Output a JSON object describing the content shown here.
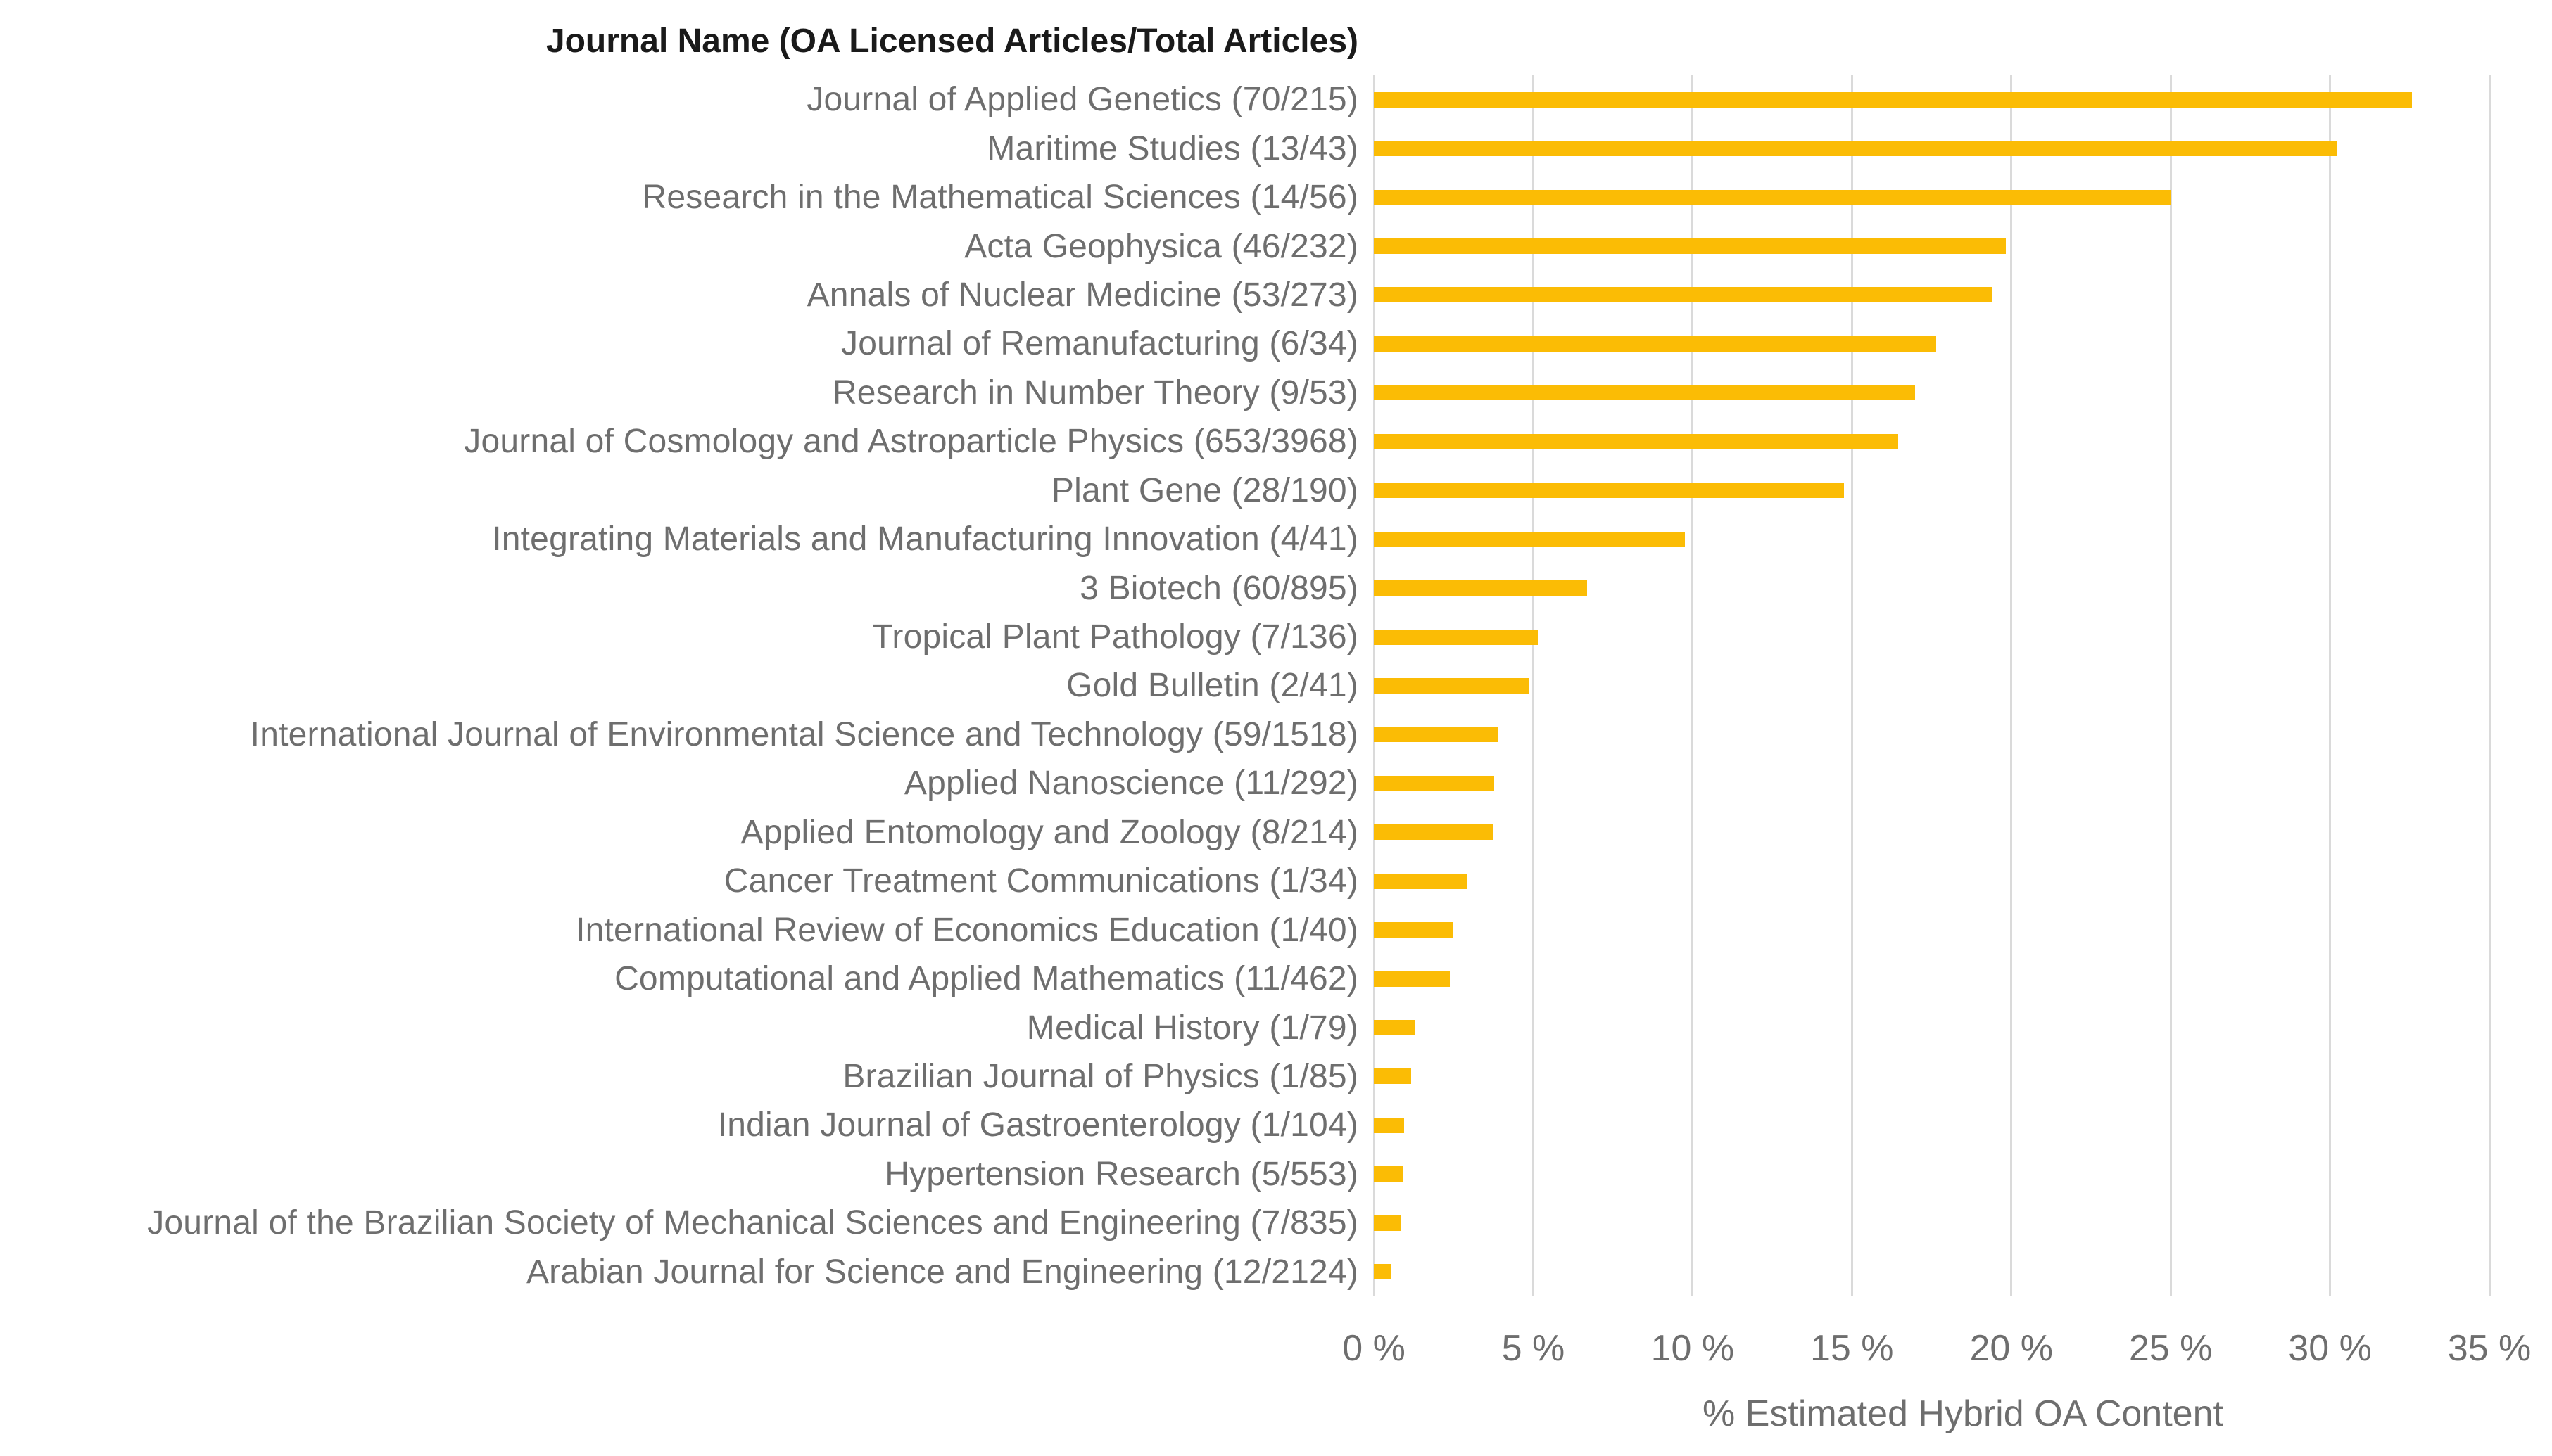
{
  "chart_data": {
    "type": "bar",
    "orientation": "horizontal",
    "title": "Journal Name (OA Licensed Articles/Total Articles)",
    "xlabel": "% Estimated Hybrid OA Content",
    "ylabel": "Journal Name (OA Licensed Articles/Total Articles)",
    "xlim": [
      0,
      35
    ],
    "x_ticks": [
      0,
      5,
      10,
      15,
      20,
      25,
      30,
      35
    ],
    "x_tick_labels": [
      "0 %",
      "5 %",
      "10 %",
      "15 %",
      "20 %",
      "25 %",
      "30 %",
      "35 %"
    ],
    "grid": true,
    "legend": false,
    "bar_color": "#FBBC05",
    "series_name": "% Estimated Hybrid OA Content",
    "categories": [
      "Journal of Applied Genetics (70/215)",
      "Maritime Studies (13/43)",
      "Research in the Mathematical Sciences (14/56)",
      "Acta Geophysica (46/232)",
      "Annals of Nuclear Medicine (53/273)",
      "Journal of Remanufacturing (6/34)",
      "Research in Number Theory (9/53)",
      "Journal of Cosmology and Astroparticle Physics (653/3968)",
      "Plant Gene (28/190)",
      "Integrating Materials and Manufacturing Innovation (4/41)",
      "3 Biotech (60/895)",
      "Tropical Plant Pathology (7/136)",
      "Gold Bulletin (2/41)",
      "International Journal of Environmental Science and Technology (59/1518)",
      "Applied Nanoscience (11/292)",
      "Applied Entomology and Zoology (8/214)",
      "Cancer Treatment Communications (1/34)",
      "International Review of Economics Education (1/40)",
      "Computational and Applied Mathematics (11/462)",
      "Medical History (1/79)",
      "Brazilian Journal of Physics (1/85)",
      "Indian Journal of Gastroenterology (1/104)",
      "Hypertension Research (5/553)",
      "Journal of the Brazilian Society of Mechanical Sciences and Engineering (7/835)",
      "Arabian Journal for Science and Engineering (12/2124)"
    ],
    "values": [
      32.56,
      30.23,
      25.0,
      19.83,
      19.41,
      17.65,
      16.98,
      16.46,
      14.74,
      9.76,
      6.7,
      5.15,
      4.88,
      3.89,
      3.77,
      3.74,
      2.94,
      2.5,
      2.38,
      1.27,
      1.18,
      0.96,
      0.9,
      0.84,
      0.56
    ],
    "oa_licensed_articles": [
      70,
      13,
      14,
      46,
      53,
      6,
      9,
      653,
      28,
      4,
      60,
      7,
      2,
      59,
      11,
      8,
      1,
      1,
      11,
      1,
      1,
      1,
      5,
      7,
      12
    ],
    "total_articles": [
      215,
      43,
      56,
      232,
      273,
      34,
      53,
      3968,
      190,
      41,
      895,
      136,
      41,
      1518,
      292,
      214,
      34,
      40,
      462,
      79,
      85,
      104,
      553,
      835,
      2124
    ]
  },
  "colors": {
    "background": "#FFFFFF",
    "bar": "#FBBC05",
    "gridline": "#DADADA",
    "axis_text": "#6E6E6E",
    "title_text": "#1A1A1A"
  }
}
